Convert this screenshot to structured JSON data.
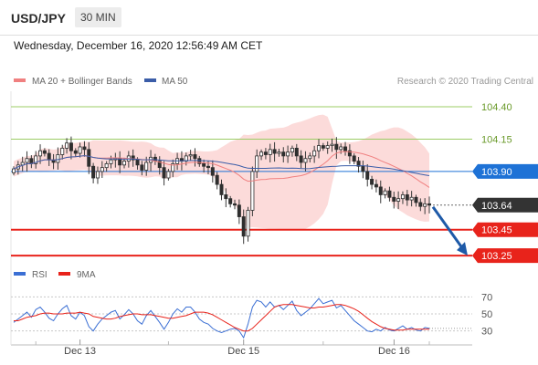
{
  "header": {
    "symbol": "USD/JPY",
    "timeframe": "30 MIN"
  },
  "datetime": "Wednesday, December 16, 2020 12:56:49 AM CET",
  "legend": {
    "items": [
      {
        "label": "MA 20 + Bollinger Bands",
        "color": "#f08080"
      },
      {
        "label": "MA 50",
        "color": "#3b5da8"
      }
    ],
    "copyright": "Research © 2020 Trading Central"
  },
  "chart_data": [
    {
      "type": "line",
      "description_type": "candlestick",
      "x_tick_labels": [
        "Dec 13",
        "Dec 15",
        "Dec 16"
      ],
      "ylim": [
        103.18,
        104.52
      ],
      "series": [
        {
          "name": "MA 20 + Bollinger Bands",
          "color": "#f08080"
        },
        {
          "name": "MA 50",
          "color": "#3b5da8"
        }
      ],
      "close_series": [
        103.92,
        103.95,
        103.97,
        104.0,
        103.96,
        104.02,
        104.06,
        104.04,
        103.99,
        103.97,
        104.03,
        104.08,
        104.12,
        104.06,
        104.04,
        104.09,
        104.07,
        103.94,
        103.85,
        103.9,
        103.93,
        103.96,
        103.99,
        104.0,
        103.95,
        103.98,
        104.02,
        103.99,
        103.95,
        103.91,
        103.97,
        104.01,
        103.98,
        103.93,
        103.85,
        103.9,
        103.96,
        104.0,
        103.98,
        104.02,
        104.03,
        104.0,
        103.96,
        103.94,
        103.93,
        103.87,
        103.8,
        103.72,
        103.69,
        103.65,
        103.64,
        103.55,
        103.4,
        103.6,
        103.9,
        104.02,
        104.05,
        104.03,
        104.07,
        104.04,
        104.05,
        104.02,
        104.05,
        104.08,
        104.02,
        103.97,
        104.0,
        104.02,
        104.06,
        104.1,
        104.08,
        104.1,
        104.11,
        104.07,
        104.09,
        104.06,
        104.02,
        103.98,
        103.94,
        103.9,
        103.84,
        103.8,
        103.78,
        103.72,
        103.75,
        103.7,
        103.67,
        103.69,
        103.72,
        103.68,
        103.7,
        103.66,
        103.63,
        103.65,
        103.64
      ],
      "price_levels": [
        {
          "value": 104.4,
          "label": "104.40",
          "kind": "resistance",
          "color": "#9ccc65"
        },
        {
          "value": 104.15,
          "label": "104.15",
          "kind": "resistance",
          "color": "#9ccc65"
        },
        {
          "value": 103.9,
          "label": "103.90",
          "kind": "pivot",
          "color": "#1e72d6"
        },
        {
          "value": 103.64,
          "label": "103.64",
          "kind": "last",
          "color": "#333333"
        },
        {
          "value": 103.45,
          "label": "103.45",
          "kind": "target",
          "color": "#e8231b"
        },
        {
          "value": 103.25,
          "label": "103.25",
          "kind": "target",
          "color": "#e8231b"
        }
      ],
      "arrow": {
        "from": 103.64,
        "to": 103.25,
        "direction": "down",
        "color": "#1e5aa8"
      }
    },
    {
      "type": "line",
      "indicator": "RSI",
      "series": [
        {
          "name": "RSI",
          "color": "#3b6fd4"
        },
        {
          "name": "9MA",
          "color": "#e8231b"
        }
      ],
      "ylim": [
        20,
        80
      ],
      "y_tick_labels": [
        "70",
        "50",
        "30"
      ],
      "y_ticks": [
        70,
        50,
        30
      ],
      "rsi_values": [
        40,
        44,
        48,
        52,
        46,
        55,
        58,
        52,
        45,
        42,
        50,
        56,
        60,
        48,
        44,
        52,
        48,
        35,
        30,
        38,
        44,
        48,
        52,
        54,
        44,
        49,
        55,
        50,
        42,
        38,
        48,
        54,
        47,
        40,
        32,
        40,
        50,
        56,
        52,
        58,
        58,
        52,
        44,
        40,
        38,
        33,
        30,
        28,
        30,
        32,
        33,
        30,
        22,
        38,
        58,
        66,
        64,
        58,
        64,
        58,
        60,
        55,
        60,
        65,
        54,
        48,
        52,
        56,
        62,
        68,
        62,
        64,
        66,
        57,
        60,
        54,
        48,
        42,
        38,
        34,
        30,
        29,
        32,
        30,
        34,
        31,
        30,
        33,
        36,
        32,
        34,
        31,
        30,
        34,
        33
      ],
      "ma9_values": [
        42,
        42,
        44,
        46,
        47,
        48,
        50,
        51,
        51,
        50,
        50,
        50,
        51,
        51,
        51,
        52,
        51,
        50,
        47,
        46,
        45,
        44,
        44,
        45,
        47,
        48,
        49,
        50,
        50,
        49,
        49,
        49,
        48,
        47,
        46,
        45,
        45,
        46,
        47,
        48,
        50,
        52,
        52,
        52,
        51,
        49,
        46,
        43,
        40,
        37,
        34,
        32,
        30,
        30,
        33,
        38,
        43,
        48,
        53,
        58,
        60,
        61,
        61,
        61,
        60,
        59,
        58,
        57,
        57,
        58,
        58,
        59,
        60,
        61,
        61,
        60,
        58,
        56,
        53,
        49,
        45,
        41,
        38,
        35,
        33,
        32,
        31,
        31,
        31,
        32,
        32,
        32,
        32,
        32,
        32
      ]
    }
  ]
}
